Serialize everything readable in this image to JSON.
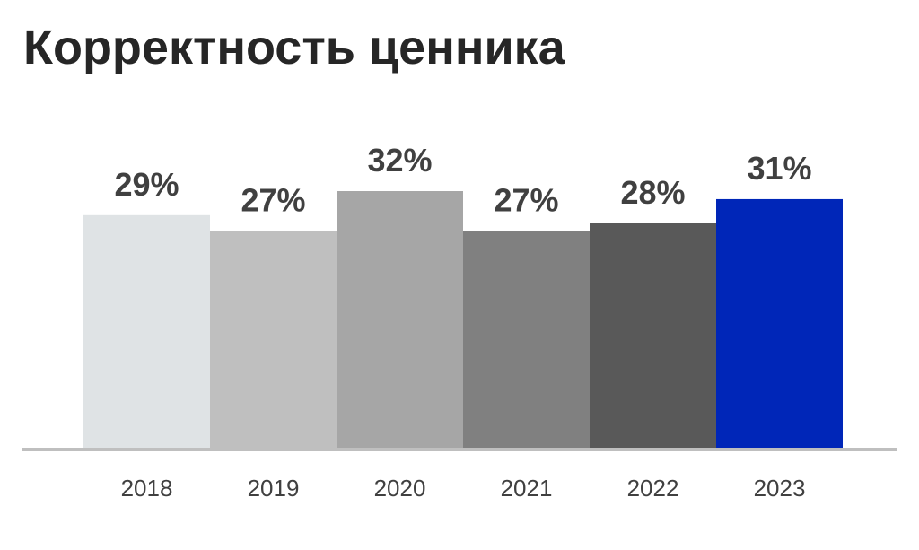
{
  "title": "Корректность ценника",
  "chart_data": {
    "type": "bar",
    "title": "Корректность ценника",
    "xlabel": "",
    "ylabel": "",
    "categories": [
      "2018",
      "2019",
      "2020",
      "2021",
      "2022",
      "2023"
    ],
    "values": [
      29,
      27,
      32,
      27,
      28,
      31
    ],
    "value_labels": [
      "29%",
      "27%",
      "32%",
      "27%",
      "28%",
      "31%"
    ],
    "bar_colors": [
      "#dfe3e5",
      "#bfbfbf",
      "#a6a6a6",
      "#808080",
      "#595959",
      "#0026b8"
    ],
    "axis_color": "#bfbfbf",
    "ylim": [
      0,
      32
    ],
    "grid": false,
    "legend": "none"
  }
}
